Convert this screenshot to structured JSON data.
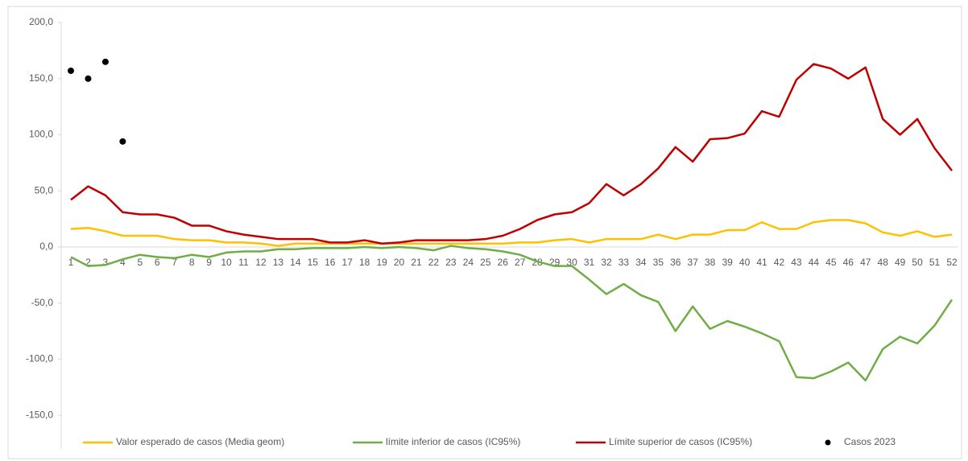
{
  "chart_data": {
    "type": "line",
    "categories": [
      "1",
      "2",
      "3",
      "4",
      "5",
      "6",
      "7",
      "8",
      "9",
      "10",
      "11",
      "12",
      "13",
      "14",
      "15",
      "16",
      "17",
      "18",
      "19",
      "20",
      "21",
      "22",
      "23",
      "24",
      "25",
      "26",
      "27",
      "28",
      "29",
      "30",
      "31",
      "32",
      "33",
      "34",
      "35",
      "36",
      "37",
      "38",
      "39",
      "40",
      "41",
      "42",
      "43",
      "44",
      "45",
      "46",
      "47",
      "48",
      "49",
      "50",
      "51",
      "52"
    ],
    "ylim": [
      -180,
      200
    ],
    "yticks": [
      {
        "value": -150,
        "label": "-150,0"
      },
      {
        "value": -100,
        "label": "-100,0"
      },
      {
        "value": -50,
        "label": "-50,0"
      },
      {
        "value": 0,
        "label": "0,0"
      },
      {
        "value": 50,
        "label": "50,0"
      },
      {
        "value": 100,
        "label": "100,0"
      },
      {
        "value": 150,
        "label": "150,0"
      },
      {
        "value": 200,
        "label": "200,0"
      }
    ],
    "legend": "bottom",
    "series": [
      {
        "name": "Valor esperado de casos (Media geom)",
        "color": "#ffc000",
        "type": "line",
        "values": [
          16,
          17,
          14,
          10,
          10,
          10,
          7,
          6,
          6,
          4,
          4,
          3,
          1,
          3,
          3,
          3,
          3,
          3,
          3,
          3,
          3,
          3,
          3,
          3,
          3,
          3,
          4,
          4,
          6,
          7,
          4,
          7,
          7,
          7,
          11,
          7,
          11,
          11,
          15,
          15,
          22,
          16,
          16,
          22,
          24,
          24,
          21,
          13,
          10,
          14,
          9,
          11
        ]
      },
      {
        "name": "límite inferior de casos (IC95%)",
        "color": "#70ad47",
        "type": "line",
        "values": [
          -9,
          -17,
          -16,
          -11,
          -7,
          -9,
          -10,
          -7,
          -9,
          -5,
          -4,
          -4,
          -2,
          -2,
          -1,
          -1,
          -1,
          0,
          -1,
          0,
          -1,
          -3,
          1,
          -1,
          -2,
          -4,
          -7,
          -13,
          -17,
          -17,
          -29,
          -42,
          -33,
          -43,
          -49,
          -75,
          -53,
          -73,
          -66,
          -71,
          -77,
          -84,
          -116,
          -117,
          -111,
          -103,
          -119,
          -91,
          -80,
          -86,
          -70,
          -47
        ]
      },
      {
        "name": "Límite superior de casos (IC95%)",
        "color": "#c00000",
        "type": "line",
        "values": [
          42,
          54,
          46,
          31,
          29,
          29,
          26,
          19,
          19,
          14,
          11,
          9,
          7,
          7,
          7,
          4,
          4,
          6,
          3,
          4,
          6,
          6,
          6,
          6,
          7,
          10,
          16,
          24,
          29,
          31,
          39,
          56,
          46,
          56,
          70,
          89,
          76,
          96,
          97,
          101,
          121,
          116,
          149,
          163,
          159,
          150,
          160,
          114,
          100,
          114,
          88,
          68
        ]
      },
      {
        "name": "Casos 2023",
        "color": "#000000",
        "type": "scatter",
        "values": [
          157,
          150,
          165,
          94,
          null,
          null,
          null,
          null,
          null,
          null,
          null,
          null,
          null,
          null,
          null,
          null,
          null,
          null,
          null,
          null,
          null,
          null,
          null,
          null,
          null,
          null,
          null,
          null,
          null,
          null,
          null,
          null,
          null,
          null,
          null,
          null,
          null,
          null,
          null,
          null,
          null,
          null,
          null,
          null,
          null,
          null,
          null,
          null,
          null,
          null,
          null,
          null
        ]
      }
    ]
  }
}
